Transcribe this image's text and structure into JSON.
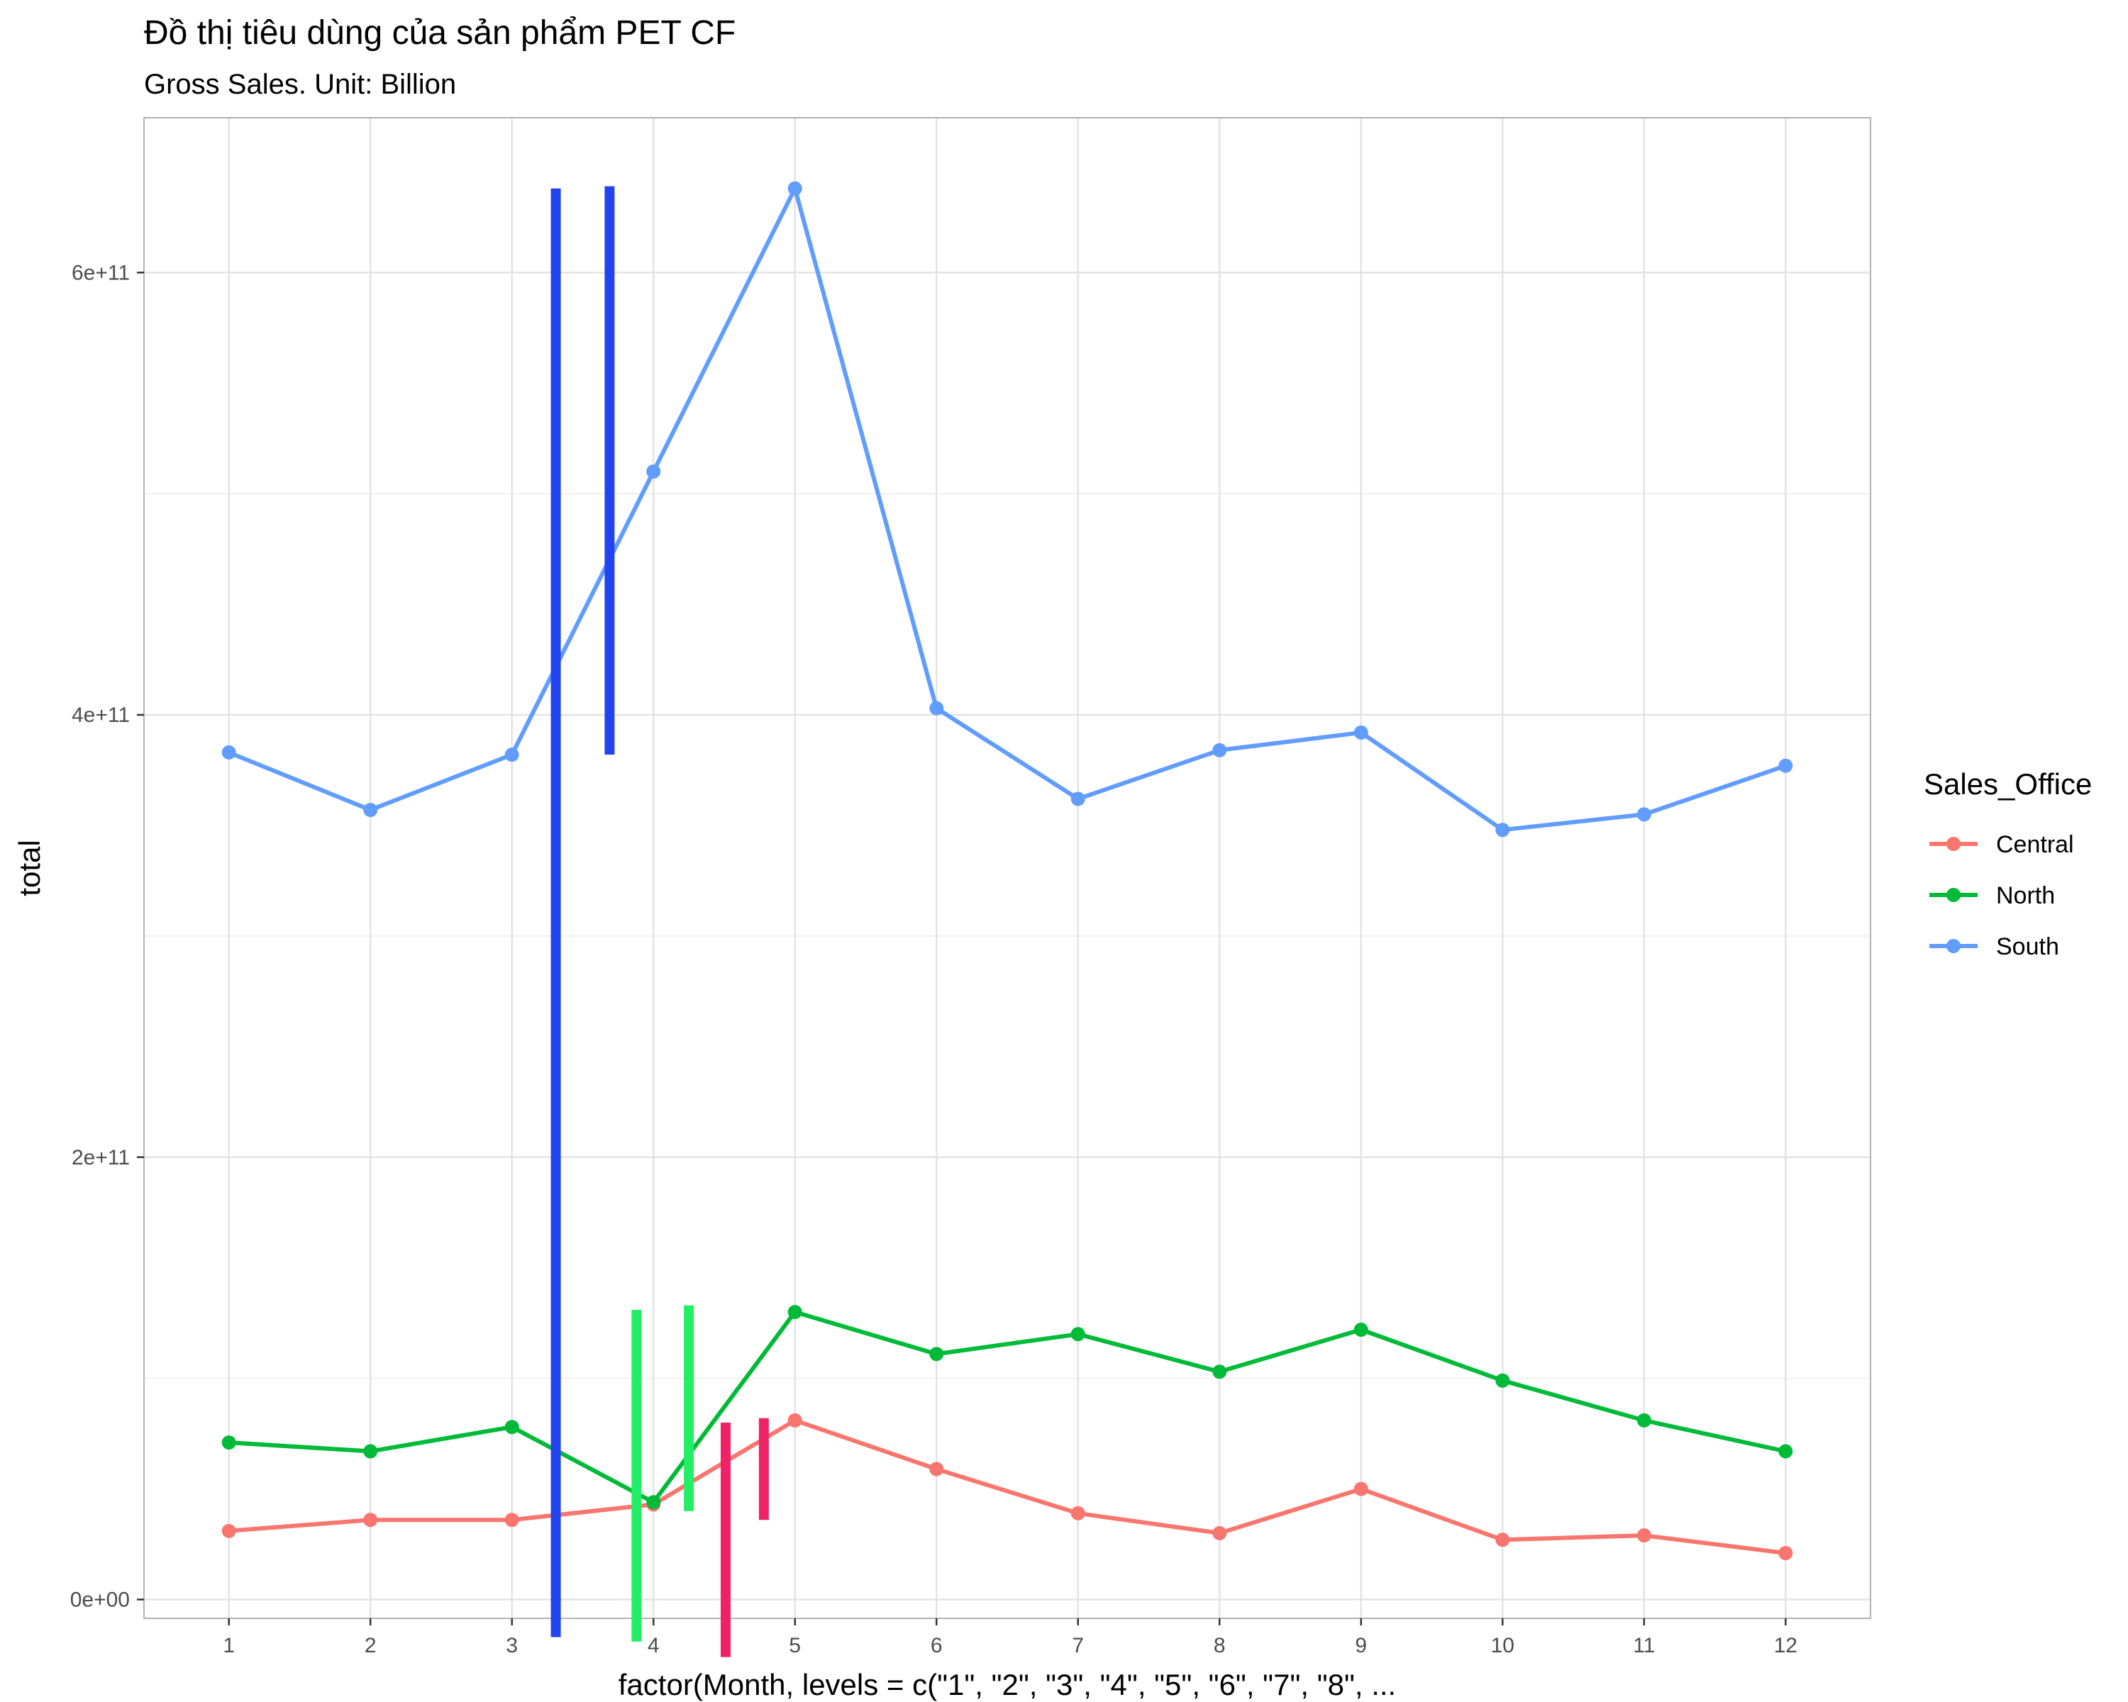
{
  "chart_data": {
    "type": "line",
    "title": "Đồ thị tiêu dùng của sản phẩm PET CF",
    "subtitle": "Gross Sales. Unit: Billion",
    "xlabel": "factor(Month, levels = c(\"1\", \"2\", \"3\", \"4\", \"5\", \"6\", \"7\", \"8\", ...",
    "ylabel": "total",
    "categories": [
      "1",
      "2",
      "3",
      "4",
      "5",
      "6",
      "7",
      "8",
      "9",
      "10",
      "11",
      "12"
    ],
    "ylim": [
      -8500000000,
      670000000000
    ],
    "y_ticks": [
      0,
      200000000000,
      400000000000,
      600000000000
    ],
    "y_tick_labels": [
      "0e+00",
      "2e+11",
      "4e+11",
      "6e+11"
    ],
    "grid": true,
    "legend": {
      "title": "Sales_Office",
      "position": "right"
    },
    "series": [
      {
        "name": "Central",
        "color": "#F8766D",
        "values": [
          31000000000,
          36000000000,
          36000000000,
          43000000000,
          81000000000,
          59000000000,
          39000000000,
          30000000000,
          50000000000,
          27000000000,
          29000000000,
          21000000000
        ]
      },
      {
        "name": "North",
        "color": "#00BA38",
        "values": [
          71000000000,
          67000000000,
          78000000000,
          44000000000,
          130000000000,
          111000000000,
          120000000000,
          103000000000,
          122000000000,
          99000000000,
          81000000000,
          67000000000
        ]
      },
      {
        "name": "South",
        "color": "#619CFF",
        "values": [
          383000000000,
          357000000000,
          382000000000,
          510000000000,
          638000000000,
          403000000000,
          362000000000,
          384000000000,
          392000000000,
          348000000000,
          355000000000,
          377000000000
        ]
      }
    ],
    "annotations": [
      {
        "color": "#2244EE",
        "x": 3.31,
        "y_start": -17000000000,
        "y_end": 638000000000
      },
      {
        "color": "#2244EE",
        "x": 3.69,
        "y_start": 382000000000,
        "y_end": 639000000000
      },
      {
        "color": "#22EE66",
        "x": 3.88,
        "y_start": -19000000000,
        "y_end": 131000000000
      },
      {
        "color": "#22EE66",
        "x": 4.25,
        "y_start": 40000000000,
        "y_end": 133000000000
      },
      {
        "color": "#EE2266",
        "x": 4.51,
        "y_start": -26000000000,
        "y_end": 80000000000
      },
      {
        "color": "#EE2266",
        "x": 4.78,
        "y_start": 36000000000,
        "y_end": 82000000000
      }
    ]
  }
}
